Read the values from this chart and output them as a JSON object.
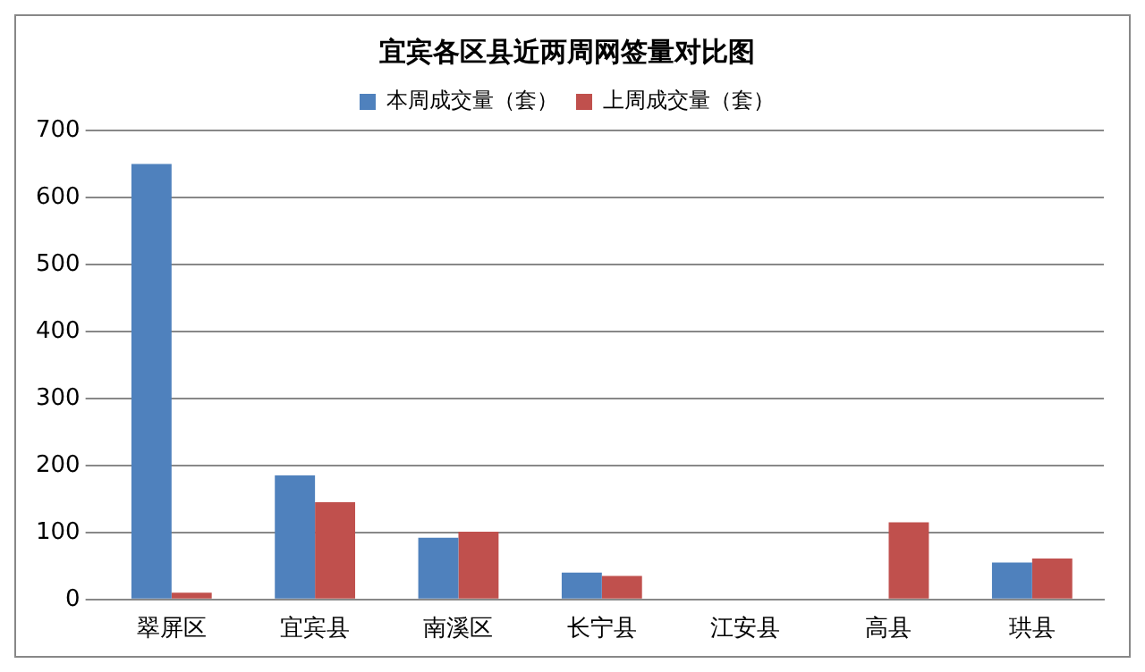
{
  "chart_data": {
    "type": "bar",
    "title": "宜宾各区县近两周网签量对比图",
    "categories": [
      "翠屏区",
      "宜宾县",
      "南溪区",
      "长宁县",
      "江安县",
      "高县",
      "珙县"
    ],
    "series": [
      {
        "name": "本周成交量（套）",
        "color": "#4f81bd",
        "values": [
          650,
          185,
          92,
          40,
          0,
          null,
          55
        ]
      },
      {
        "name": "上周成交量（套）",
        "color": "#c0504d",
        "values": [
          10,
          145,
          101,
          35,
          0,
          115,
          61
        ]
      }
    ],
    "ylim": [
      0,
      700
    ],
    "yticks": [
      0,
      100,
      200,
      300,
      400,
      500,
      600,
      700
    ],
    "grid": "y",
    "legend": "top"
  }
}
